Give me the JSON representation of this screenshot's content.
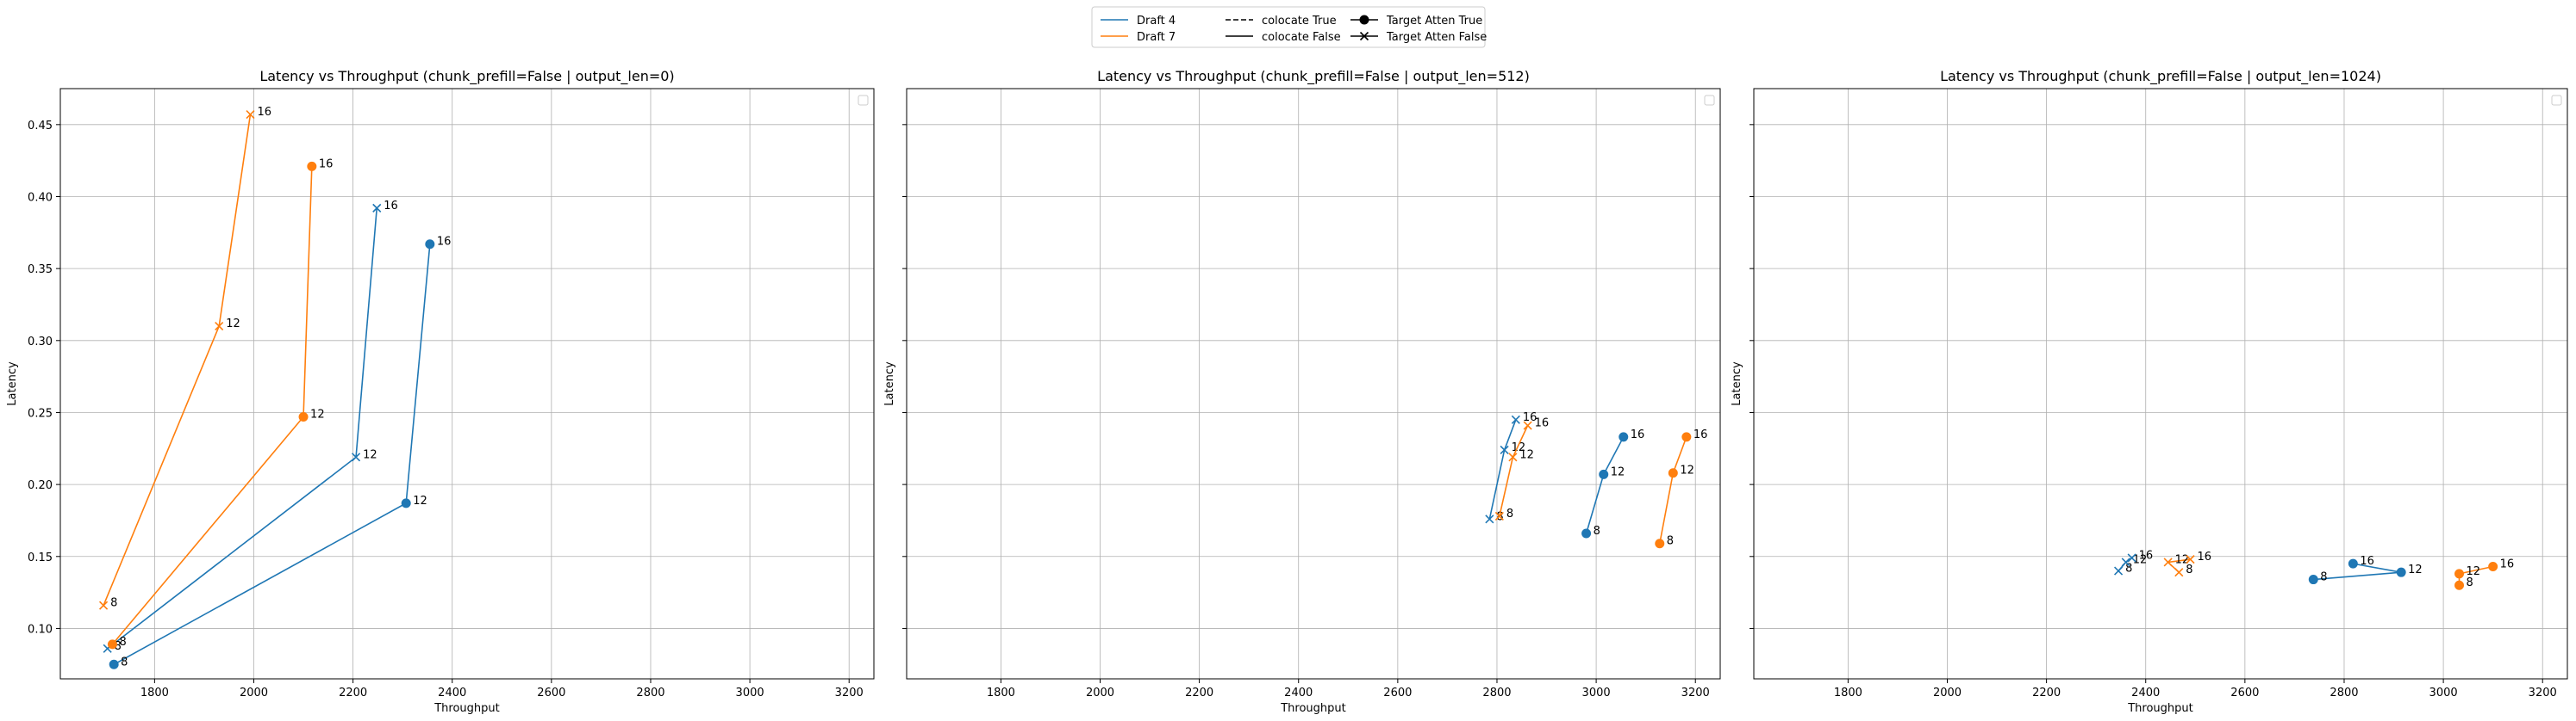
{
  "colors": {
    "draft4": "#1f77b4",
    "draft7": "#ff7f0e",
    "grid": "#b0b0b0",
    "axis": "#000000"
  },
  "legend": {
    "entries": [
      {
        "label": "Draft 4",
        "kind": "line",
        "color": "#1f77b4",
        "dash": "solid",
        "marker": "none"
      },
      {
        "label": "Draft 7",
        "kind": "line",
        "color": "#ff7f0e",
        "dash": "solid",
        "marker": "none"
      },
      {
        "label": "colocate True",
        "kind": "line",
        "color": "#000000",
        "dash": "dashed",
        "marker": "none"
      },
      {
        "label": "colocate False",
        "kind": "line",
        "color": "#000000",
        "dash": "solid",
        "marker": "none"
      },
      {
        "label": "Target Atten True",
        "kind": "line",
        "color": "#000000",
        "dash": "solid",
        "marker": "circle"
      },
      {
        "label": "Target Atten False",
        "kind": "line",
        "color": "#000000",
        "dash": "solid",
        "marker": "x"
      }
    ],
    "placement": "top-center"
  },
  "chart_data": [
    {
      "type": "line",
      "title": "Latency vs Throughput (chunk_prefill=False | output_len=0)",
      "xlabel": "Throughput",
      "ylabel": "Latency",
      "xlim": [
        1610,
        3250
      ],
      "ylim": [
        0.065,
        0.475
      ],
      "xticks": [
        1800,
        2000,
        2200,
        2400,
        2600,
        2800,
        3000,
        3200
      ],
      "yticks": [
        0.1,
        0.15,
        0.2,
        0.25,
        0.3,
        0.35,
        0.4,
        0.45
      ],
      "ytick_labels": [
        "0.10",
        "0.15",
        "0.20",
        "0.25",
        "0.30",
        "0.35",
        "0.40",
        "0.45"
      ],
      "show_yticklabels": true,
      "grid": true,
      "series": [
        {
          "draft": "Draft 4",
          "marker": "x",
          "color": "#1f77b4",
          "points": [
            [
              1705,
              0.086
            ],
            [
              2206,
              0.219
            ],
            [
              2248,
              0.392
            ]
          ],
          "labels": [
            "8",
            "12",
            "16"
          ]
        },
        {
          "draft": "Draft 4",
          "marker": "circle",
          "color": "#1f77b4",
          "points": [
            [
              1718,
              0.075
            ],
            [
              2307,
              0.187
            ],
            [
              2355,
              0.367
            ]
          ],
          "labels": [
            "8",
            "12",
            "16"
          ]
        },
        {
          "draft": "Draft 7",
          "marker": "x",
          "color": "#ff7f0e",
          "points": [
            [
              1697,
              0.116
            ],
            [
              1930,
              0.31
            ],
            [
              1993,
              0.457
            ]
          ],
          "labels": [
            "8",
            "12",
            "16"
          ]
        },
        {
          "draft": "Draft 7",
          "marker": "circle",
          "color": "#ff7f0e",
          "points": [
            [
              1715,
              0.089
            ],
            [
              2100,
              0.247
            ],
            [
              2117,
              0.421
            ]
          ],
          "labels": [
            "8",
            "12",
            "16"
          ]
        }
      ]
    },
    {
      "type": "line",
      "title": "Latency vs Throughput (chunk_prefill=False | output_len=512)",
      "xlabel": "Throughput",
      "ylabel": "Latency",
      "xlim": [
        1610,
        3250
      ],
      "ylim": [
        0.065,
        0.475
      ],
      "xticks": [
        1800,
        2000,
        2200,
        2400,
        2600,
        2800,
        3000,
        3200
      ],
      "yticks": [
        0.1,
        0.15,
        0.2,
        0.25,
        0.3,
        0.35,
        0.4,
        0.45
      ],
      "ytick_labels": [],
      "show_yticklabels": false,
      "grid": true,
      "series": [
        {
          "draft": "Draft 4",
          "marker": "x",
          "color": "#1f77b4",
          "points": [
            [
              2785,
              0.176
            ],
            [
              2815,
              0.224
            ],
            [
              2838,
              0.245
            ]
          ],
          "labels": [
            "8",
            "12",
            "16"
          ]
        },
        {
          "draft": "Draft 4",
          "marker": "circle",
          "color": "#1f77b4",
          "points": [
            [
              2980,
              0.166
            ],
            [
              3015,
              0.207
            ],
            [
              3055,
              0.233
            ]
          ],
          "labels": [
            "8",
            "12",
            "16"
          ]
        },
        {
          "draft": "Draft 7",
          "marker": "x",
          "color": "#ff7f0e",
          "points": [
            [
              2805,
              0.178
            ],
            [
              2832,
              0.219
            ],
            [
              2862,
              0.241
            ]
          ],
          "labels": [
            "8",
            "12",
            "16"
          ]
        },
        {
          "draft": "Draft 7",
          "marker": "circle",
          "color": "#ff7f0e",
          "points": [
            [
              3128,
              0.159
            ],
            [
              3155,
              0.208
            ],
            [
              3182,
              0.233
            ]
          ],
          "labels": [
            "8",
            "12",
            "16"
          ]
        }
      ]
    },
    {
      "type": "line",
      "title": "Latency vs Throughput (chunk_prefill=False | output_len=1024)",
      "xlabel": "Throughput",
      "ylabel": "Latency",
      "xlim": [
        1610,
        3250
      ],
      "ylim": [
        0.065,
        0.475
      ],
      "xticks": [
        1800,
        2000,
        2200,
        2400,
        2600,
        2800,
        3000,
        3200
      ],
      "yticks": [
        0.1,
        0.15,
        0.2,
        0.25,
        0.3,
        0.35,
        0.4,
        0.45
      ],
      "ytick_labels": [],
      "show_yticklabels": false,
      "grid": true,
      "series": [
        {
          "draft": "Draft 4",
          "marker": "x",
          "color": "#1f77b4",
          "points": [
            [
              2345,
              0.14
            ],
            [
              2360,
              0.146
            ],
            [
              2372,
              0.149
            ]
          ],
          "labels": [
            "8",
            "12",
            "16"
          ]
        },
        {
          "draft": "Draft 4",
          "marker": "circle",
          "color": "#1f77b4",
          "points": [
            [
              2738,
              0.134
            ],
            [
              2915,
              0.139
            ],
            [
              2818,
              0.145
            ]
          ],
          "labels": [
            "8",
            "12",
            "16"
          ]
        },
        {
          "draft": "Draft 7",
          "marker": "x",
          "color": "#ff7f0e",
          "points": [
            [
              2467,
              0.139
            ],
            [
              2445,
              0.146
            ],
            [
              2490,
              0.148
            ]
          ],
          "labels": [
            "8",
            "12",
            "16"
          ]
        },
        {
          "draft": "Draft 7",
          "marker": "circle",
          "color": "#ff7f0e",
          "points": [
            [
              3032,
              0.13
            ],
            [
              3032,
              0.138
            ],
            [
              3100,
              0.143
            ]
          ],
          "labels": [
            "8",
            "12",
            "16"
          ]
        }
      ]
    }
  ]
}
